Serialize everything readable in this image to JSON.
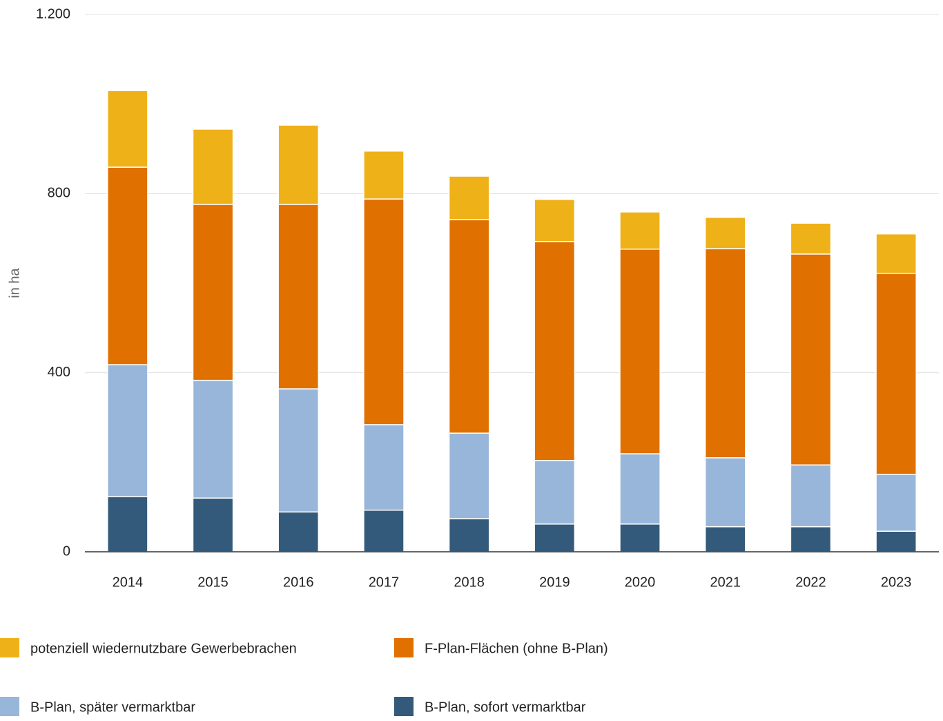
{
  "chart_data": {
    "type": "stacked_bar",
    "y_label": "in ha",
    "categories": [
      "2014",
      "2015",
      "2016",
      "2017",
      "2018",
      "2019",
      "2020",
      "2021",
      "2022",
      "2023"
    ],
    "series": [
      {
        "name": "B-Plan, sofort vermarktbar",
        "color": "#335a7a",
        "values": [
          123,
          120,
          89,
          93,
          74,
          62,
          62,
          56,
          56,
          46
        ]
      },
      {
        "name": "B-Plan, später vermarktbar",
        "color": "#97b6d9",
        "values": [
          295,
          263,
          275,
          191,
          191,
          142,
          157,
          154,
          138,
          127
        ]
      },
      {
        "name": "F-Plan-Flächen (ohne B-Plan)",
        "color": "#e07000",
        "values": [
          441,
          393,
          412,
          504,
          477,
          489,
          457,
          467,
          471,
          449
        ]
      },
      {
        "name": "potenziell wiedernutzbare Gewerbebrachen",
        "color": "#efb118",
        "values": [
          171,
          168,
          177,
          107,
          97,
          94,
          83,
          70,
          69,
          88
        ]
      }
    ],
    "ylim": [
      0,
      1200
    ],
    "yticks": [
      0,
      400,
      800,
      {
        "value": 1200,
        "label": "1.200"
      }
    ],
    "grid": true,
    "legend": "bottom"
  }
}
